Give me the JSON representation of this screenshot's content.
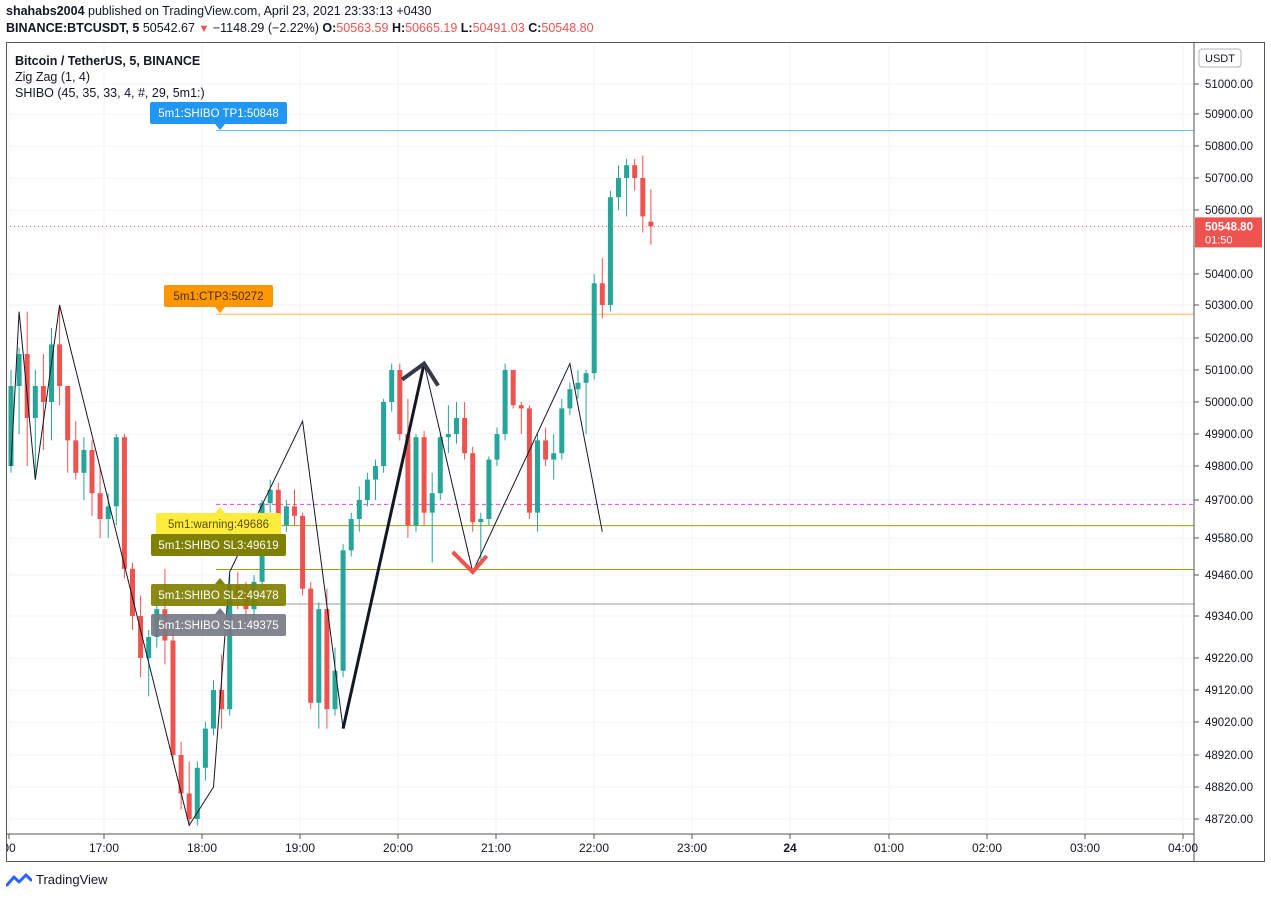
{
  "header": {
    "author": "shahabs2004",
    "published_text": "published on TradingView.com, April 23, 2021 23:33:13 +0430",
    "symbol": "BINANCE:BTCUSDT, 5",
    "last": "50542.67",
    "change": "−1148.29 (−2.22%)",
    "o_label": "O:",
    "o_value": "50563.59",
    "h_label": "H:",
    "h_value": "50665.19",
    "l_label": "L:",
    "l_value": "50491.03",
    "c_label": "C:",
    "c_value": "50548.80"
  },
  "legend": {
    "title": "Bitcoin / TetherUS, 5, BINANCE",
    "indicator1": "Zig Zag (1, 4)",
    "indicator2": "SHIBO (45, 35, 33, 4, #, 29, 5m1:)"
  },
  "footer": {
    "brand": "TradingView",
    "logo_icon": "tradingview-logo-icon"
  },
  "chart_data": {
    "type": "candlestick",
    "currency_label": "USDT",
    "price_axis_ticks": [
      "51000.00",
      "50900.00",
      "50800.00",
      "50700.00",
      "50600.00",
      "50400.00",
      "50300.00",
      "50200.00",
      "50100.00",
      "50000.00",
      "49900.00",
      "49800.00",
      "49700.00",
      "49580.00",
      "49460.00",
      "49340.00",
      "49220.00",
      "49120.00",
      "49020.00",
      "48920.00",
      "48820.00",
      "48720.00"
    ],
    "time_axis_ticks": [
      "00",
      "17:00",
      "18:00",
      "19:00",
      "20:00",
      "21:00",
      "22:00",
      "23:00",
      "24",
      "01:00",
      "02:00",
      "03:00",
      "04:00"
    ],
    "current_price": {
      "value": "50548.80",
      "countdown": "01:50"
    },
    "colors": {
      "up": "#26a69a",
      "down": "#ef5350"
    },
    "level_labels": [
      {
        "text": "5m1:SHIBO TP1:50848",
        "value": 50848,
        "bg": "#2196f3",
        "fg": "#ffffff",
        "line": "#64b5f6"
      },
      {
        "text": "5m1:CTP3:50272",
        "value": 50272,
        "bg": "#ff9800",
        "fg": "#4a2b00",
        "line": "#ffb74d"
      },
      {
        "text": "5m1:warning:49686",
        "value": 49686,
        "bg": "#ffeb3b",
        "fg": "#5a5000",
        "line": "#e040fb"
      },
      {
        "text": "5m1:SHIBO SL3:49619",
        "value": 49619,
        "bg": "#808000",
        "fg": "#ffffff",
        "line": "#a0a000"
      },
      {
        "text": "5m1:SHIBO SL2:49478",
        "value": 49478,
        "bg": "#808000",
        "fg": "#ffffff",
        "line": "#a0a000"
      },
      {
        "text": "5m1:SHIBO SL1:49375",
        "value": 49375,
        "bg": "#787b86",
        "fg": "#ffffff",
        "line": "#9e9e9e"
      }
    ],
    "candles": [
      [
        49800,
        50100,
        49780,
        50050
      ],
      [
        50050,
        50170,
        49900,
        50150
      ],
      [
        50150,
        50280,
        49800,
        49950
      ],
      [
        49950,
        50100,
        49760,
        50050
      ],
      [
        50050,
        50150,
        49850,
        50000
      ],
      [
        50000,
        50230,
        49880,
        50180
      ],
      [
        50180,
        50300,
        49990,
        50050
      ],
      [
        50050,
        50050,
        49780,
        49880
      ],
      [
        49880,
        49940,
        49760,
        49780
      ],
      [
        49780,
        49890,
        49700,
        49850
      ],
      [
        49850,
        49880,
        49650,
        49720
      ],
      [
        49720,
        49800,
        49580,
        49640
      ],
      [
        49640,
        49720,
        49580,
        49680
      ],
      [
        49680,
        49900,
        49620,
        49890
      ],
      [
        49890,
        49900,
        49450,
        49480
      ],
      [
        49480,
        49500,
        49300,
        49340
      ],
      [
        49340,
        49400,
        49160,
        49220
      ],
      [
        49220,
        49300,
        49100,
        49280
      ],
      [
        49280,
        49400,
        49250,
        49360
      ],
      [
        49360,
        49480,
        49200,
        49270
      ],
      [
        49270,
        49330,
        48900,
        48920
      ],
      [
        48920,
        48960,
        48750,
        48800
      ],
      [
        48800,
        48900,
        48700,
        48720
      ],
      [
        48720,
        48900,
        48700,
        48880
      ],
      [
        48880,
        49020,
        48840,
        49000
      ],
      [
        49000,
        49150,
        48980,
        49120
      ],
      [
        49120,
        49230,
        49000,
        49060
      ],
      [
        49060,
        49460,
        49040,
        49430
      ],
      [
        49430,
        49470,
        49360,
        49400
      ],
      [
        49400,
        49440,
        49320,
        49360
      ],
      [
        49360,
        49460,
        49330,
        49440
      ],
      [
        49440,
        49700,
        49420,
        49690
      ],
      [
        49690,
        49760,
        49660,
        49730
      ],
      [
        49730,
        49750,
        49590,
        49620
      ],
      [
        49620,
        49700,
        49600,
        49680
      ],
      [
        49680,
        49730,
        49620,
        49650
      ],
      [
        49650,
        49660,
        49400,
        49420
      ],
      [
        49420,
        49440,
        49060,
        49080
      ],
      [
        49080,
        49380,
        49000,
        49360
      ],
      [
        49360,
        49420,
        49000,
        49060
      ],
      [
        49060,
        49250,
        49040,
        49180
      ],
      [
        49180,
        49560,
        49160,
        49540
      ],
      [
        49540,
        49660,
        49520,
        49640
      ],
      [
        49640,
        49740,
        49600,
        49700
      ],
      [
        49700,
        49780,
        49680,
        49760
      ],
      [
        49760,
        49820,
        49700,
        49800
      ],
      [
        49800,
        50010,
        49780,
        50000
      ],
      [
        50000,
        50120,
        49970,
        50100
      ],
      [
        50100,
        50120,
        49880,
        49900
      ],
      [
        49900,
        50010,
        49580,
        49620
      ],
      [
        49620,
        49900,
        49600,
        49890
      ],
      [
        49890,
        49910,
        49620,
        49660
      ],
      [
        49660,
        49780,
        49500,
        49720
      ],
      [
        49720,
        49900,
        49700,
        49890
      ],
      [
        49890,
        49990,
        49840,
        49900
      ],
      [
        49900,
        50000,
        49870,
        49950
      ],
      [
        49950,
        50000,
        49820,
        49840
      ],
      [
        49840,
        49860,
        49600,
        49630
      ],
      [
        49630,
        49660,
        49500,
        49640
      ],
      [
        49640,
        49830,
        49620,
        49820
      ],
      [
        49820,
        49920,
        49800,
        49900
      ],
      [
        49900,
        50120,
        49880,
        50100
      ],
      [
        50100,
        50100,
        49980,
        49990
      ],
      [
        49990,
        50000,
        49900,
        49980
      ],
      [
        49980,
        49990,
        49640,
        49660
      ],
      [
        49660,
        49900,
        49600,
        49880
      ],
      [
        49880,
        49920,
        49800,
        49820
      ],
      [
        49820,
        49900,
        49760,
        49840
      ],
      [
        49840,
        50010,
        49820,
        49980
      ],
      [
        49980,
        50060,
        49960,
        50040
      ],
      [
        50040,
        50100,
        50010,
        50060
      ],
      [
        50060,
        50100,
        49900,
        50090
      ],
      [
        50090,
        50400,
        50070,
        50370
      ],
      [
        50370,
        50450,
        50260,
        50300
      ],
      [
        50300,
        50660,
        50280,
        50640
      ],
      [
        50640,
        50740,
        50600,
        50700
      ],
      [
        50700,
        50760,
        50580,
        50740
      ],
      [
        50740,
        50760,
        50660,
        50700
      ],
      [
        50700,
        50770,
        50530,
        50580
      ],
      [
        50563.59,
        50665.19,
        50491.03,
        50548.8
      ]
    ],
    "zigzag": [
      [
        0,
        49800
      ],
      [
        1,
        50280
      ],
      [
        3,
        49760
      ],
      [
        6,
        50300
      ],
      [
        22,
        48700
      ],
      [
        25,
        48820
      ],
      [
        27,
        49470
      ],
      [
        36,
        49940
      ],
      [
        41,
        49000
      ],
      [
        51,
        50120
      ],
      [
        57,
        49470
      ],
      [
        69,
        50120
      ],
      [
        73,
        49600
      ]
    ],
    "arrows": [
      {
        "type": "up",
        "candle": 51
      },
      {
        "type": "down",
        "candle": 57
      }
    ]
  }
}
